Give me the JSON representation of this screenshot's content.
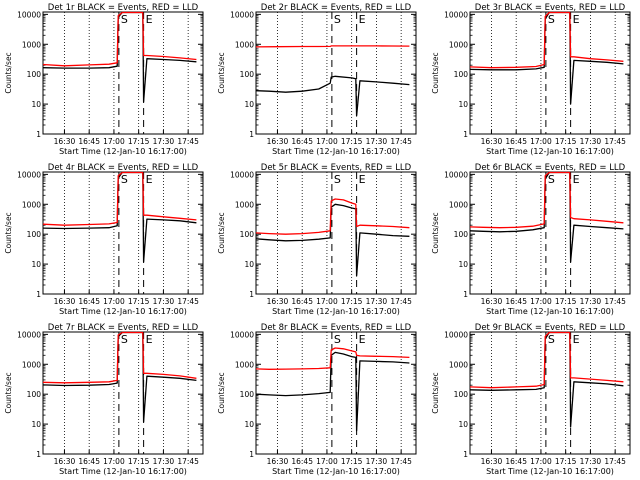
{
  "colors": {
    "events": "#000000",
    "lld": "#ff0000",
    "axis": "#000000",
    "background": "#ffffff"
  },
  "xaxis": {
    "label": "Start Time (12-Jan-10 16:17:00)",
    "ticks": [
      "16:30",
      "16:45",
      "17:00",
      "17:15",
      "17:30",
      "17:45"
    ],
    "tick_minutes": [
      30,
      45,
      60,
      75,
      90,
      105
    ],
    "xlim_minutes": [
      17,
      114
    ],
    "start": "16:17:00",
    "grid": "dotted"
  },
  "yaxis": {
    "label": "Counts/sec",
    "scale": "log",
    "ylim": [
      1,
      12000
    ],
    "ticks": [
      "1",
      "10",
      "100",
      "1000",
      "10000"
    ],
    "tick_values": [
      1,
      10,
      100,
      1000,
      10000
    ]
  },
  "markers": [
    {
      "label": "S",
      "minute": 63
    },
    {
      "label": "E",
      "minute": 78
    }
  ],
  "chart_data": [
    {
      "type": "line",
      "title": "Det 1r BLACK = Events, RED = LLD",
      "series": [
        {
          "name": "Events",
          "x": [
            17,
            30,
            45,
            57,
            62,
            62.6,
            65,
            70,
            75,
            77.5,
            78,
            80,
            90,
            100,
            110
          ],
          "y": [
            165,
            160,
            160,
            165,
            185,
            8000,
            12000,
            12000,
            12000,
            12000,
            12,
            330,
            310,
            290,
            260
          ]
        },
        {
          "name": "LLD",
          "x": [
            17,
            30,
            45,
            57,
            62,
            62.6,
            65,
            70,
            75,
            77.5,
            78,
            80,
            90,
            100,
            110
          ],
          "y": [
            210,
            190,
            205,
            215,
            240,
            9000,
            12000,
            12000,
            12000,
            12000,
            420,
            420,
            390,
            350,
            310
          ]
        }
      ]
    },
    {
      "type": "line",
      "title": "Det 2r BLACK = Events, RED = LLD",
      "series": [
        {
          "name": "Events",
          "x": [
            17,
            25,
            35,
            45,
            55,
            62,
            62.6,
            65,
            75,
            77.5,
            78,
            80,
            90,
            100,
            110
          ],
          "y": [
            28,
            27,
            25,
            27,
            32,
            50,
            80,
            85,
            75,
            70,
            4,
            60,
            55,
            50,
            45
          ]
        },
        {
          "name": "LLD",
          "x": [
            17,
            30,
            45,
            55,
            62,
            62.6,
            65,
            75,
            78,
            80,
            90,
            100,
            110
          ],
          "y": [
            820,
            830,
            840,
            845,
            850,
            880,
            880,
            880,
            880,
            880,
            880,
            875,
            870
          ]
        }
      ]
    },
    {
      "type": "line",
      "title": "Det 3r BLACK = Events, RED = LLD",
      "series": [
        {
          "name": "Events",
          "x": [
            17,
            30,
            45,
            57,
            62,
            62.6,
            65,
            70,
            75,
            77.5,
            78,
            80,
            90,
            100,
            110
          ],
          "y": [
            145,
            140,
            140,
            150,
            170,
            7000,
            12000,
            12000,
            12000,
            12000,
            10,
            290,
            270,
            250,
            220
          ]
        },
        {
          "name": "LLD",
          "x": [
            17,
            30,
            45,
            57,
            62,
            62.6,
            65,
            70,
            75,
            77.5,
            78,
            80,
            90,
            100,
            110
          ],
          "y": [
            175,
            165,
            170,
            180,
            210,
            8500,
            12000,
            12000,
            12000,
            12000,
            380,
            380,
            330,
            300,
            270
          ]
        }
      ]
    },
    {
      "type": "line",
      "title": "Det 4r BLACK = Events, RED = LLD",
      "series": [
        {
          "name": "Events",
          "x": [
            17,
            30,
            45,
            57,
            62,
            62.6,
            65,
            70,
            75,
            77.5,
            78,
            80,
            90,
            100,
            110
          ],
          "y": [
            160,
            155,
            160,
            165,
            190,
            7500,
            12000,
            12000,
            12000,
            12000,
            12,
            320,
            300,
            280,
            240
          ]
        },
        {
          "name": "LLD",
          "x": [
            17,
            30,
            45,
            57,
            62,
            62.6,
            65,
            70,
            75,
            77.5,
            78,
            80,
            90,
            100,
            110
          ],
          "y": [
            215,
            200,
            210,
            220,
            245,
            9000,
            12000,
            12000,
            12000,
            12000,
            430,
            430,
            380,
            340,
            300
          ]
        }
      ]
    },
    {
      "type": "line",
      "title": "Det 5r BLACK = Events, RED = LLD",
      "series": [
        {
          "name": "Events",
          "x": [
            17,
            25,
            35,
            45,
            55,
            62,
            62.6,
            65,
            70,
            75,
            77.5,
            78,
            80,
            90,
            100,
            110
          ],
          "y": [
            70,
            65,
            60,
            62,
            68,
            75,
            800,
            1000,
            900,
            750,
            700,
            4,
            110,
            100,
            90,
            85
          ]
        },
        {
          "name": "LLD",
          "x": [
            17,
            25,
            35,
            45,
            55,
            62,
            62.6,
            65,
            70,
            75,
            77.5,
            78,
            80,
            90,
            100,
            110
          ],
          "y": [
            110,
            105,
            100,
            105,
            115,
            130,
            1300,
            1500,
            1400,
            1100,
            1000,
            180,
            200,
            190,
            180,
            165
          ]
        }
      ]
    },
    {
      "type": "line",
      "title": "Det 6r BLACK = Events, RED = LLD",
      "series": [
        {
          "name": "Events",
          "x": [
            17,
            25,
            35,
            45,
            55,
            62,
            62.6,
            65,
            70,
            75,
            77.5,
            78,
            80,
            90,
            100,
            110
          ],
          "y": [
            130,
            125,
            120,
            125,
            140,
            165,
            7000,
            12000,
            12000,
            12000,
            12000,
            12,
            200,
            180,
            165,
            150
          ]
        },
        {
          "name": "LLD",
          "x": [
            17,
            25,
            35,
            45,
            55,
            62,
            62.6,
            65,
            70,
            75,
            77.5,
            78,
            80,
            90,
            100,
            110
          ],
          "y": [
            175,
            170,
            165,
            170,
            185,
            220,
            9000,
            12000,
            12000,
            12000,
            12000,
            360,
            330,
            300,
            270,
            240
          ]
        }
      ]
    },
    {
      "type": "line",
      "title": "Det 7r BLACK = Events, RED = LLD",
      "series": [
        {
          "name": "Events",
          "x": [
            17,
            30,
            45,
            57,
            62,
            62.6,
            65,
            70,
            75,
            77.5,
            78,
            80,
            90,
            100,
            110
          ],
          "y": [
            205,
            195,
            200,
            210,
            235,
            8500,
            12000,
            12000,
            12000,
            12000,
            12,
            400,
            370,
            340,
            290
          ]
        },
        {
          "name": "LLD",
          "x": [
            17,
            30,
            45,
            57,
            62,
            62.6,
            65,
            70,
            75,
            77.5,
            78,
            80,
            90,
            100,
            110
          ],
          "y": [
            250,
            240,
            250,
            260,
            290,
            9500,
            12000,
            12000,
            12000,
            12000,
            500,
            500,
            460,
            410,
            340
          ]
        }
      ]
    },
    {
      "type": "line",
      "title": "Det 8r BLACK = Events, RED = LLD",
      "series": [
        {
          "name": "Events",
          "x": [
            17,
            25,
            35,
            45,
            55,
            62,
            62.6,
            65,
            70,
            75,
            77.5,
            78,
            80,
            90,
            100,
            110
          ],
          "y": [
            100,
            95,
            90,
            95,
            105,
            115,
            2000,
            2500,
            2200,
            1800,
            1700,
            6,
            1300,
            1250,
            1200,
            1100
          ]
        },
        {
          "name": "LLD",
          "x": [
            17,
            25,
            35,
            45,
            55,
            62,
            62.6,
            65,
            70,
            75,
            77.5,
            78,
            80,
            90,
            100,
            110
          ],
          "y": [
            700,
            680,
            690,
            700,
            720,
            760,
            3000,
            3500,
            3300,
            2800,
            2600,
            2000,
            1900,
            1850,
            1800,
            1700
          ]
        }
      ]
    },
    {
      "type": "line",
      "title": "Det 9r BLACK = Events, RED = LLD",
      "series": [
        {
          "name": "Events",
          "x": [
            17,
            30,
            45,
            57,
            62,
            62.6,
            65,
            70,
            75,
            77.5,
            78,
            80,
            90,
            100,
            110
          ],
          "y": [
            140,
            135,
            140,
            145,
            165,
            7000,
            12000,
            12000,
            12000,
            12000,
            8,
            260,
            240,
            220,
            190
          ]
        },
        {
          "name": "LLD",
          "x": [
            17,
            30,
            45,
            57,
            62,
            62.6,
            65,
            70,
            75,
            77.5,
            78,
            80,
            90,
            100,
            110
          ],
          "y": [
            175,
            165,
            175,
            185,
            210,
            8500,
            12000,
            12000,
            12000,
            12000,
            350,
            350,
            320,
            290,
            260
          ]
        }
      ]
    }
  ]
}
